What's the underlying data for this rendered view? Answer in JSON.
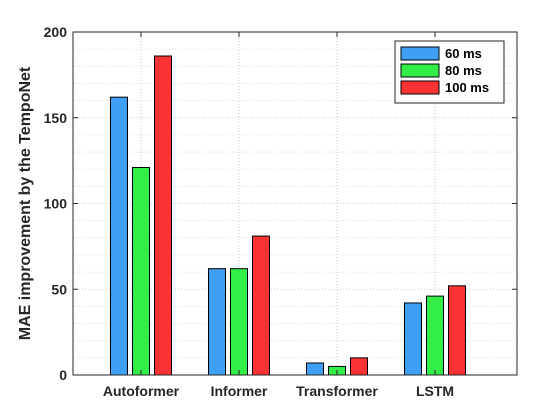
{
  "chart_data": {
    "type": "bar",
    "title": "",
    "xlabel": "",
    "ylabel": "MAE improvement by the TempoNet",
    "categories": [
      "Autoformer",
      "Informer",
      "Transformer",
      "LSTM"
    ],
    "series": [
      {
        "name": "60 ms",
        "color": "#3f9ff5",
        "values": [
          162,
          62,
          7,
          42
        ]
      },
      {
        "name": "80 ms",
        "color": "#33ee47",
        "values": [
          121,
          62,
          5,
          46
        ]
      },
      {
        "name": "100 ms",
        "color": "#fa3434",
        "values": [
          186,
          81,
          10,
          52
        ]
      }
    ],
    "ylim": [
      0,
      200
    ],
    "yticks": [
      0,
      50,
      100,
      150,
      200
    ],
    "grid": true,
    "minor_grid": true,
    "legend_position": "top-right"
  }
}
